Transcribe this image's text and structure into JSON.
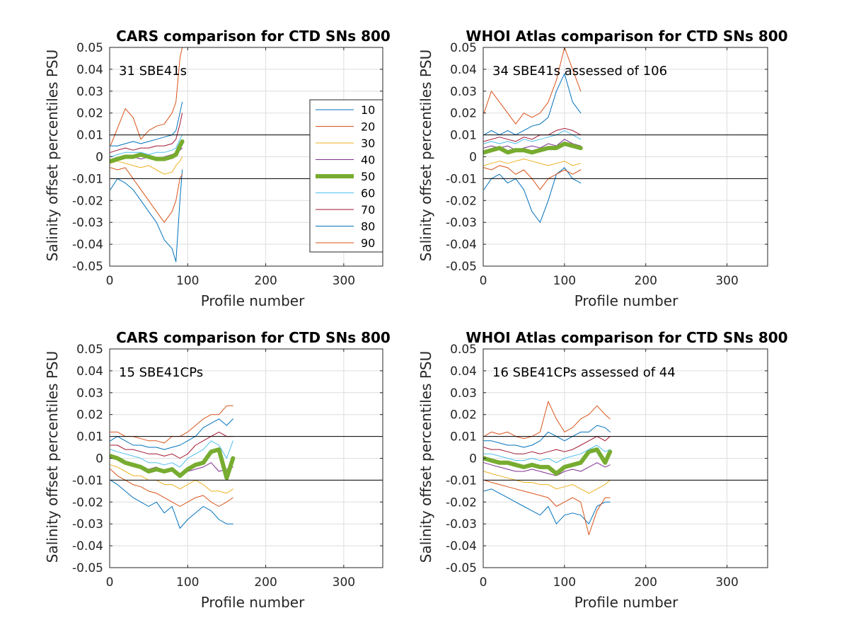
{
  "figure": {
    "xlabel": "Profile number",
    "ylabel": "Salinity offset percentiles PSU"
  },
  "chart_data": [
    {
      "type": "line",
      "title": "CARS comparison for CTD SNs 800",
      "annotation": "31 SBE41s",
      "xlabel": "Profile number",
      "ylabel": "Salinity offset percentiles PSU",
      "xlim": [
        0,
        350
      ],
      "ylim": [
        -0.05,
        0.05
      ],
      "xticks": [
        "0",
        "100",
        "200",
        "300"
      ],
      "yticks": [
        "-0.05",
        "-0.04",
        "-0.03",
        "-0.02",
        "-0.01",
        "0",
        "0.01",
        "0.02",
        "0.03",
        "0.04",
        "0.05"
      ],
      "grid": true,
      "reference_lines": [
        0.01,
        -0.01
      ],
      "legend": {
        "placement": "right",
        "entries": [
          "10",
          "20",
          "30",
          "40",
          "50",
          "60",
          "70",
          "80",
          "90"
        ]
      },
      "x": [
        1,
        10,
        20,
        30,
        40,
        50,
        60,
        70,
        80,
        85,
        90,
        93
      ],
      "series": [
        {
          "name": "10",
          "color": "#0072BD",
          "width": 1,
          "values": [
            -0.015,
            -0.01,
            -0.012,
            -0.015,
            -0.02,
            -0.025,
            -0.03,
            -0.038,
            -0.042,
            -0.048,
            -0.02,
            -0.006
          ]
        },
        {
          "name": "20",
          "color": "#D95319",
          "width": 1,
          "values": [
            0.005,
            0.013,
            0.022,
            0.018,
            0.008,
            0.012,
            0.014,
            0.015,
            0.02,
            0.025,
            0.045,
            0.05
          ]
        },
        {
          "name": "30",
          "color": "#EDB120",
          "width": 1,
          "values": [
            -0.003,
            -0.002,
            -0.003,
            -0.004,
            -0.005,
            -0.004,
            -0.006,
            -0.008,
            -0.007,
            -0.004,
            -0.002,
            0.0
          ]
        },
        {
          "name": "40",
          "color": "#7E2F8E",
          "width": 1,
          "values": [
            -0.002,
            -0.001,
            0.0,
            0.0,
            -0.001,
            0.0,
            -0.001,
            0.0,
            0.001,
            0.002,
            0.003,
            0.004
          ]
        },
        {
          "name": "50",
          "color": "#77AC30",
          "width": 6,
          "values": [
            -0.002,
            -0.001,
            0.0,
            0.0,
            0.001,
            0.0,
            -0.001,
            -0.001,
            0.0,
            0.001,
            0.005,
            0.007
          ]
        },
        {
          "name": "60",
          "color": "#4DBEEE",
          "width": 1,
          "values": [
            0.0,
            0.001,
            0.002,
            0.002,
            0.002,
            0.001,
            0.002,
            0.002,
            0.003,
            0.004,
            0.008,
            0.01
          ]
        },
        {
          "name": "70",
          "color": "#A2142F",
          "width": 1,
          "values": [
            0.002,
            0.003,
            0.004,
            0.003,
            0.004,
            0.004,
            0.005,
            0.005,
            0.006,
            0.008,
            0.015,
            0.02
          ]
        },
        {
          "name": "80",
          "color": "#0072BD",
          "width": 1,
          "values": [
            0.005,
            0.005,
            0.006,
            0.007,
            0.006,
            0.007,
            0.008,
            0.009,
            0.01,
            0.012,
            0.02,
            0.025
          ]
        },
        {
          "name": "90",
          "color": "#D95319",
          "width": 1,
          "values": [
            -0.005,
            -0.006,
            -0.005,
            -0.01,
            -0.015,
            -0.02,
            -0.025,
            -0.03,
            -0.025,
            -0.02,
            -0.01,
            -0.008
          ]
        }
      ]
    },
    {
      "type": "line",
      "title": "WHOI Atlas comparison for CTD SNs 800",
      "annotation": "34 SBE41s assessed of 106",
      "xlabel": "Profile number",
      "ylabel": "Salinity offset percentiles PSU",
      "xlim": [
        0,
        350
      ],
      "ylim": [
        -0.05,
        0.05
      ],
      "xticks": [
        "0",
        "100",
        "200",
        "300"
      ],
      "yticks": [
        "-0.05",
        "-0.04",
        "-0.03",
        "-0.02",
        "-0.01",
        "0",
        "0.01",
        "0.02",
        "0.03",
        "0.04",
        "0.05"
      ],
      "grid": true,
      "reference_lines": [
        0.01,
        -0.01
      ],
      "x": [
        1,
        10,
        20,
        30,
        40,
        50,
        60,
        70,
        80,
        90,
        100,
        110,
        120
      ],
      "series": [
        {
          "name": "10",
          "color": "#0072BD",
          "width": 1,
          "values": [
            -0.015,
            -0.01,
            -0.008,
            -0.012,
            -0.01,
            -0.015,
            -0.025,
            -0.03,
            -0.02,
            -0.008,
            -0.005,
            -0.01,
            -0.012
          ]
        },
        {
          "name": "20",
          "color": "#D95319",
          "width": 1,
          "values": [
            0.02,
            0.03,
            0.025,
            0.02,
            0.015,
            0.02,
            0.018,
            0.02,
            0.025,
            0.035,
            0.05,
            0.04,
            0.03
          ]
        },
        {
          "name": "30",
          "color": "#EDB120",
          "width": 1,
          "values": [
            -0.004,
            -0.003,
            -0.002,
            -0.003,
            -0.002,
            -0.001,
            -0.002,
            -0.003,
            -0.004,
            -0.003,
            -0.002,
            -0.004,
            -0.003
          ]
        },
        {
          "name": "40",
          "color": "#7E2F8E",
          "width": 1,
          "values": [
            0.004,
            0.005,
            0.004,
            0.005,
            0.003,
            0.004,
            0.005,
            0.004,
            0.006,
            0.005,
            0.008,
            0.006,
            0.005
          ]
        },
        {
          "name": "50",
          "color": "#77AC30",
          "width": 6,
          "values": [
            0.002,
            0.003,
            0.004,
            0.002,
            0.003,
            0.003,
            0.002,
            0.003,
            0.004,
            0.004,
            0.006,
            0.005,
            0.004
          ]
        },
        {
          "name": "60",
          "color": "#4DBEEE",
          "width": 1,
          "values": [
            0.006,
            0.007,
            0.006,
            0.007,
            0.006,
            0.008,
            0.007,
            0.008,
            0.009,
            0.01,
            0.012,
            0.01,
            0.008
          ]
        },
        {
          "name": "70",
          "color": "#A2142F",
          "width": 1,
          "values": [
            0.007,
            0.008,
            0.009,
            0.008,
            0.007,
            0.009,
            0.008,
            0.01,
            0.01,
            0.012,
            0.013,
            0.012,
            0.01
          ]
        },
        {
          "name": "80",
          "color": "#0072BD",
          "width": 1,
          "values": [
            0.01,
            0.012,
            0.01,
            0.012,
            0.01,
            0.012,
            0.014,
            0.015,
            0.018,
            0.03,
            0.038,
            0.025,
            0.02
          ]
        },
        {
          "name": "90",
          "color": "#D95319",
          "width": 1,
          "values": [
            -0.005,
            -0.006,
            -0.004,
            -0.005,
            -0.008,
            -0.006,
            -0.01,
            -0.015,
            -0.01,
            -0.008,
            -0.006,
            -0.008,
            -0.006
          ]
        }
      ]
    },
    {
      "type": "line",
      "title": "CARS comparison for CTD SNs 800",
      "annotation": "15 SBE41CPs",
      "xlabel": "Profile number",
      "ylabel": "Salinity offset percentiles PSU",
      "xlim": [
        0,
        350
      ],
      "ylim": [
        -0.05,
        0.05
      ],
      "xticks": [
        "0",
        "100",
        "200",
        "300"
      ],
      "yticks": [
        "-0.05",
        "-0.04",
        "-0.03",
        "-0.02",
        "-0.01",
        "0",
        "0.01",
        "0.02",
        "0.03",
        "0.04",
        "0.05"
      ],
      "grid": true,
      "reference_lines": [
        0.01,
        -0.01
      ],
      "x": [
        1,
        10,
        20,
        30,
        40,
        50,
        60,
        70,
        80,
        90,
        100,
        110,
        120,
        130,
        140,
        150,
        158
      ],
      "series": [
        {
          "name": "10",
          "color": "#0072BD",
          "width": 1,
          "values": [
            -0.01,
            -0.012,
            -0.015,
            -0.018,
            -0.02,
            -0.022,
            -0.02,
            -0.025,
            -0.022,
            -0.032,
            -0.028,
            -0.025,
            -0.022,
            -0.024,
            -0.028,
            -0.03,
            -0.03
          ]
        },
        {
          "name": "20",
          "color": "#D95319",
          "width": 1,
          "values": [
            -0.005,
            -0.008,
            -0.01,
            -0.012,
            -0.013,
            -0.015,
            -0.016,
            -0.018,
            -0.02,
            -0.022,
            -0.02,
            -0.018,
            -0.017,
            -0.02,
            -0.022,
            -0.02,
            -0.018
          ]
        },
        {
          "name": "30",
          "color": "#EDB120",
          "width": 1,
          "values": [
            -0.003,
            -0.004,
            -0.006,
            -0.008,
            -0.008,
            -0.01,
            -0.01,
            -0.012,
            -0.012,
            -0.014,
            -0.012,
            -0.01,
            -0.012,
            -0.015,
            -0.015,
            -0.016,
            -0.014
          ]
        },
        {
          "name": "40",
          "color": "#7E2F8E",
          "width": 1,
          "values": [
            0.0,
            0.0,
            -0.002,
            -0.003,
            -0.004,
            -0.005,
            -0.004,
            -0.006,
            -0.006,
            -0.008,
            -0.006,
            -0.005,
            -0.004,
            -0.002,
            -0.006,
            -0.005,
            -0.004
          ]
        },
        {
          "name": "50",
          "color": "#77AC30",
          "width": 6,
          "values": [
            0.001,
            0.0,
            -0.002,
            -0.003,
            -0.004,
            -0.006,
            -0.005,
            -0.006,
            -0.005,
            -0.008,
            -0.005,
            -0.003,
            -0.002,
            0.003,
            0.004,
            -0.009,
            0.0
          ]
        },
        {
          "name": "60",
          "color": "#4DBEEE",
          "width": 1,
          "values": [
            0.004,
            0.003,
            0.002,
            0.001,
            0.0,
            -0.002,
            -0.002,
            -0.003,
            -0.002,
            -0.004,
            0.0,
            0.002,
            0.004,
            0.008,
            0.006,
            0.0,
            0.008
          ]
        },
        {
          "name": "70",
          "color": "#A2142F",
          "width": 1,
          "values": [
            0.006,
            0.006,
            0.004,
            0.004,
            0.003,
            0.002,
            0.002,
            0.001,
            0.002,
            0.0,
            0.002,
            0.006,
            0.008,
            0.01,
            0.012,
            0.01,
            0.01
          ]
        },
        {
          "name": "80",
          "color": "#0072BD",
          "width": 1,
          "values": [
            0.008,
            0.01,
            0.008,
            0.006,
            0.006,
            0.005,
            0.005,
            0.004,
            0.005,
            0.006,
            0.008,
            0.01,
            0.014,
            0.016,
            0.018,
            0.015,
            0.018
          ]
        },
        {
          "name": "90",
          "color": "#D95319",
          "width": 1,
          "values": [
            0.012,
            0.012,
            0.01,
            0.01,
            0.009,
            0.008,
            0.008,
            0.007,
            0.01,
            0.01,
            0.012,
            0.015,
            0.018,
            0.02,
            0.02,
            0.024,
            0.024
          ]
        }
      ]
    },
    {
      "type": "line",
      "title": "WHOI Atlas comparison for CTD SNs 800",
      "annotation": "16 SBE41CPs assessed of 44",
      "xlabel": "Profile number",
      "ylabel": "Salinity offset percentiles PSU",
      "xlim": [
        0,
        350
      ],
      "ylim": [
        -0.05,
        0.05
      ],
      "xticks": [
        "0",
        "100",
        "200",
        "300"
      ],
      "yticks": [
        "-0.05",
        "-0.04",
        "-0.03",
        "-0.02",
        "-0.01",
        "0",
        "0.01",
        "0.02",
        "0.03",
        "0.04",
        "0.05"
      ],
      "grid": true,
      "reference_lines": [
        0.01,
        -0.01
      ],
      "x": [
        1,
        10,
        20,
        30,
        40,
        50,
        60,
        70,
        80,
        90,
        100,
        110,
        120,
        130,
        140,
        150,
        156
      ],
      "series": [
        {
          "name": "10",
          "color": "#0072BD",
          "width": 1,
          "values": [
            -0.015,
            -0.014,
            -0.016,
            -0.018,
            -0.02,
            -0.022,
            -0.024,
            -0.026,
            -0.022,
            -0.03,
            -0.026,
            -0.025,
            -0.026,
            -0.03,
            -0.022,
            -0.02,
            -0.02
          ]
        },
        {
          "name": "20",
          "color": "#D95319",
          "width": 1,
          "values": [
            -0.01,
            -0.011,
            -0.012,
            -0.013,
            -0.014,
            -0.015,
            -0.016,
            -0.017,
            -0.018,
            -0.022,
            -0.02,
            -0.018,
            -0.02,
            -0.035,
            -0.024,
            -0.018,
            -0.018
          ]
        },
        {
          "name": "30",
          "color": "#EDB120",
          "width": 1,
          "values": [
            -0.006,
            -0.007,
            -0.008,
            -0.009,
            -0.01,
            -0.011,
            -0.011,
            -0.012,
            -0.012,
            -0.014,
            -0.013,
            -0.012,
            -0.014,
            -0.016,
            -0.014,
            -0.012,
            -0.01
          ]
        },
        {
          "name": "40",
          "color": "#7E2F8E",
          "width": 1,
          "values": [
            -0.002,
            -0.003,
            -0.004,
            -0.005,
            -0.006,
            -0.006,
            -0.005,
            -0.006,
            -0.007,
            -0.008,
            -0.006,
            -0.005,
            -0.006,
            -0.004,
            -0.002,
            -0.004,
            -0.003
          ]
        },
        {
          "name": "50",
          "color": "#77AC30",
          "width": 6,
          "values": [
            0.0,
            -0.001,
            -0.002,
            -0.002,
            -0.003,
            -0.004,
            -0.003,
            -0.004,
            -0.004,
            -0.007,
            -0.004,
            -0.003,
            -0.002,
            0.003,
            0.004,
            -0.002,
            0.003
          ]
        },
        {
          "name": "60",
          "color": "#4DBEEE",
          "width": 1,
          "values": [
            0.002,
            0.002,
            0.001,
            0.0,
            -0.001,
            -0.001,
            0.0,
            -0.001,
            0.0,
            -0.002,
            0.0,
            0.001,
            0.002,
            0.004,
            0.006,
            0.003,
            0.004
          ]
        },
        {
          "name": "70",
          "color": "#A2142F",
          "width": 1,
          "values": [
            0.005,
            0.004,
            0.004,
            0.003,
            0.002,
            0.002,
            0.003,
            0.002,
            0.003,
            0.004,
            0.003,
            0.004,
            0.006,
            0.008,
            0.01,
            0.008,
            0.01
          ]
        },
        {
          "name": "80",
          "color": "#0072BD",
          "width": 1,
          "values": [
            0.008,
            0.008,
            0.007,
            0.006,
            0.006,
            0.005,
            0.006,
            0.008,
            0.012,
            0.01,
            0.008,
            0.01,
            0.012,
            0.012,
            0.015,
            0.014,
            0.012
          ]
        },
        {
          "name": "90",
          "color": "#D95319",
          "width": 1,
          "values": [
            0.01,
            0.012,
            0.011,
            0.012,
            0.01,
            0.009,
            0.01,
            0.012,
            0.026,
            0.018,
            0.012,
            0.014,
            0.018,
            0.02,
            0.024,
            0.02,
            0.018
          ]
        }
      ]
    }
  ]
}
